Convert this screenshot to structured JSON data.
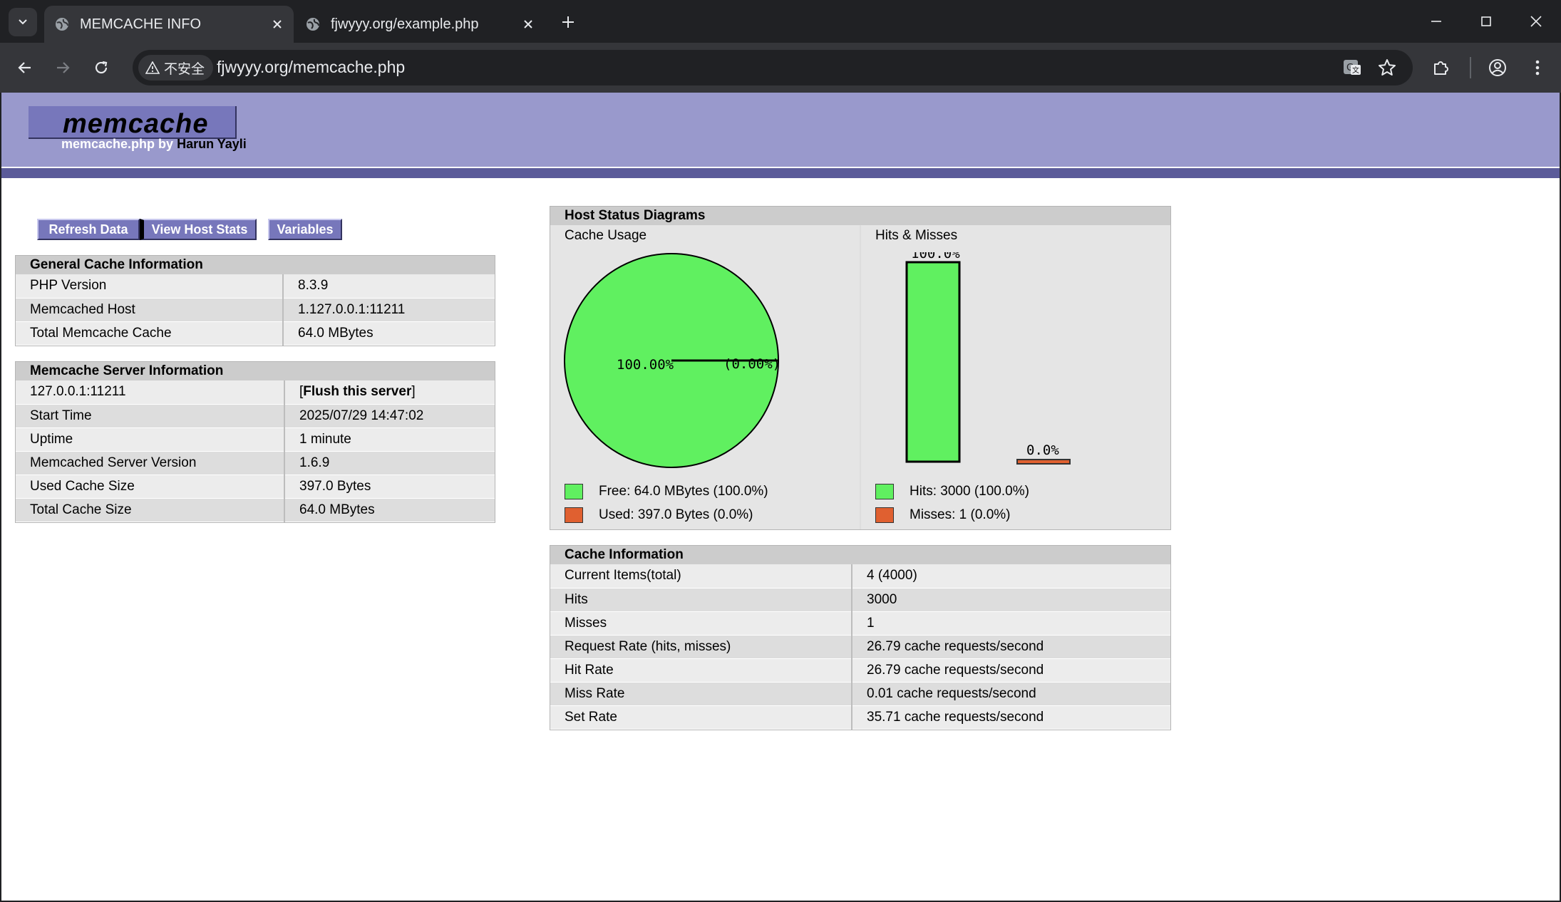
{
  "browser": {
    "tabs": [
      {
        "title": "MEMCACHE INFO",
        "active": true
      },
      {
        "title": "fjwyyy.org/example.php",
        "active": false
      }
    ],
    "security_label": "不安全",
    "url": "fjwyyy.org/memcache.php"
  },
  "header": {
    "logo": "memcache",
    "byline_prefix": "memcache.php by",
    "author": "Harun Yayli"
  },
  "menu": {
    "refresh": "Refresh Data",
    "host_stats": "View Host Stats",
    "variables": "Variables"
  },
  "general": {
    "title": "General Cache Information",
    "rows": [
      {
        "k": "PHP Version",
        "v": "8.3.9"
      },
      {
        "k": "Memcached Host",
        "v": "1.127.0.0.1:11211"
      },
      {
        "k": "Total Memcache Cache",
        "v": "64.0 MBytes"
      }
    ]
  },
  "server": {
    "title": "Memcache Server Information",
    "host": "127.0.0.1:11211",
    "flush_open": "[",
    "flush_label": "Flush this server",
    "flush_close": "]",
    "rows": [
      {
        "k": "Start Time",
        "v": "2025/07/29 14:47:02"
      },
      {
        "k": "Uptime",
        "v": "1 minute"
      },
      {
        "k": "Memcached Server Version",
        "v": "1.6.9"
      },
      {
        "k": "Used Cache Size",
        "v": "397.0 Bytes"
      },
      {
        "k": "Total Cache Size",
        "v": "64.0 MBytes"
      }
    ]
  },
  "diagrams": {
    "title": "Host Status Diagrams",
    "usage": {
      "subtitle": "Cache Usage",
      "free_pct_label": "100.00%",
      "used_pct_label": "(0.00%)",
      "free_fraction": 1.0,
      "legend_free": "Free: 64.0 MBytes (100.0%)",
      "legend_used": "Used: 397.0 Bytes (0.0%)"
    },
    "hits": {
      "subtitle": "Hits & Misses",
      "hits_pct_label": "100.0%",
      "misses_pct_label": "0.0%",
      "hits_fraction": 1.0,
      "misses_fraction": 0.0,
      "legend_hits": "Hits: 3000 (100.0%)",
      "legend_misses": "Misses: 1 (0.0%)"
    },
    "colors": {
      "green": "#60f060",
      "orange": "#e06030"
    }
  },
  "cache": {
    "title": "Cache Information",
    "rows": [
      {
        "k": "Current Items(total)",
        "v": "4 (4000)"
      },
      {
        "k": "Hits",
        "v": "3000"
      },
      {
        "k": "Misses",
        "v": "1"
      },
      {
        "k": "Request Rate (hits, misses)",
        "v": "26.79 cache requests/second"
      },
      {
        "k": "Hit Rate",
        "v": "26.79 cache requests/second"
      },
      {
        "k": "Miss Rate",
        "v": "0.01 cache requests/second"
      },
      {
        "k": "Set Rate",
        "v": "35.71 cache requests/second"
      }
    ]
  }
}
